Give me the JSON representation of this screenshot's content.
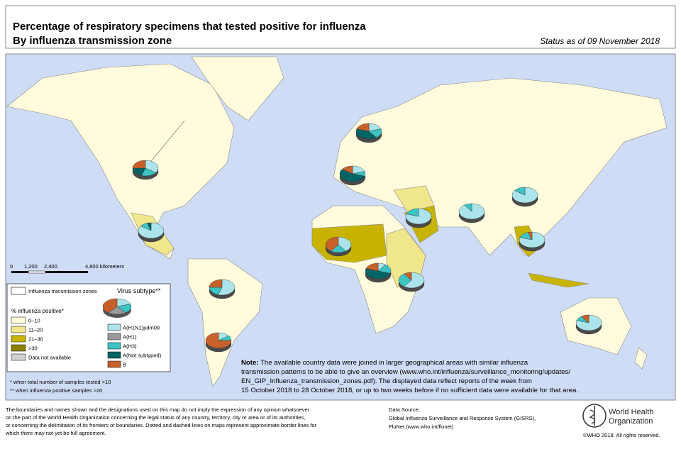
{
  "header": {
    "title": "Percentage of respiratory specimens that tested positive for influenza",
    "subtitle": "By influenza transmission zone",
    "status": "Status as of 09 November 2018"
  },
  "scale_bar": {
    "labels": [
      "0",
      "1,200",
      "2,400",
      "4,800 kilometers"
    ]
  },
  "legend": {
    "zones_title": "Influenza transmission zones",
    "subtype_title": "Virus subtype**",
    "positive_title": "% influenza positive*",
    "positive_classes": [
      {
        "label": "0–10",
        "color": "#fffbdc"
      },
      {
        "label": "11–20",
        "color": "#f0e68c"
      },
      {
        "label": "21–30",
        "color": "#c8b400"
      },
      {
        "label": ">30",
        "color": "#8b8000"
      },
      {
        "label": "Data not available",
        "color": "#d0d0d0"
      }
    ],
    "subtypes": [
      {
        "label": "A(H1N1)pdm09",
        "color": "#ace4ec"
      },
      {
        "label": "A(H1)",
        "color": "#9a9a9a"
      },
      {
        "label": "A(H3)",
        "color": "#3cc4c4"
      },
      {
        "label": "A(Not subtyped)",
        "color": "#006464"
      },
      {
        "label": "B",
        "color": "#c8602a"
      }
    ]
  },
  "footnotes": [
    "*   when total number of samples tested >10",
    "** when influenza positive samples >20"
  ],
  "note": {
    "label": "Note:",
    "lines": [
      "The available country data were joined in larger geographical areas with similar influenza",
      "transmission patterns to be able to give an overview (www.who.int/influenza/surveillance_monitoring/updates/",
      "EN_GIP_Influenza_transmission_zones.pdf). The displayed data reflect reports of the week from",
      "15 October 2018 to 28 October 2018, or up to two weeks before if no sufficient data were available for that area."
    ]
  },
  "disclaimer": [
    "The boundaries and names shown and the designations used on this map do not imply the expression of any opinion whatsoever",
    "on the part of the World Health Organization concerning the legal status of any country, territory, city or area or of its authorities,",
    "or concerning the delimitation of its frontiers or boundaries. Dotted and dashed lines on maps represent approximate border lines for",
    "which there may not yet be full agreement."
  ],
  "data_source": {
    "title": "Data Source:",
    "lines": [
      "Global Influenza Surveillance and Response System (GISRS),",
      "FluNet (www.who.int/flunet)"
    ]
  },
  "organization": {
    "name_lines": [
      "World Health",
      "Organization"
    ],
    "copyright": "©WHO 2018. All rights reserved."
  },
  "pies": [
    {
      "values": [
        35,
        0,
        20,
        20,
        25
      ]
    },
    {
      "values": [
        85,
        0,
        10,
        5,
        0
      ]
    },
    {
      "values": [
        55,
        0,
        20,
        0,
        25
      ]
    },
    {
      "values": [
        15,
        0,
        10,
        0,
        75
      ]
    },
    {
      "values": [
        20,
        0,
        20,
        40,
        20
      ]
    },
    {
      "values": [
        20,
        0,
        10,
        55,
        15
      ]
    },
    {
      "values": [
        80,
        0,
        20,
        0,
        0
      ]
    },
    {
      "values": [
        40,
        0,
        20,
        0,
        40
      ]
    },
    {
      "values": [
        10,
        0,
        20,
        50,
        20
      ]
    },
    {
      "values": [
        60,
        0,
        30,
        0,
        10
      ]
    },
    {
      "values": [
        90,
        0,
        10,
        0,
        0
      ]
    },
    {
      "values": [
        85,
        0,
        15,
        0,
        0
      ]
    },
    {
      "values": [
        80,
        0,
        15,
        0,
        5
      ]
    },
    {
      "values": [
        80,
        0,
        10,
        0,
        10
      ]
    }
  ]
}
